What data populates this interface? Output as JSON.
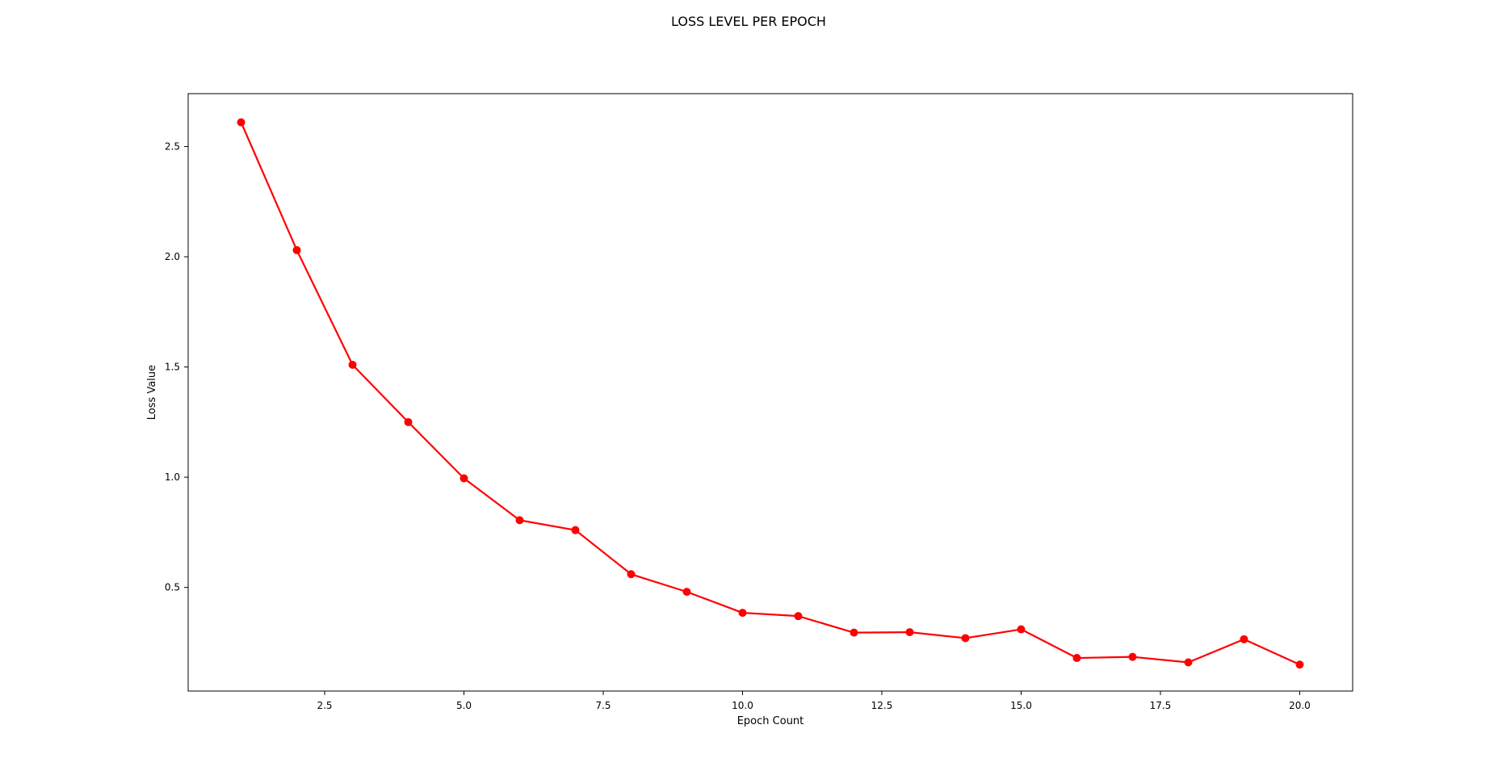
{
  "chart_data": {
    "type": "line",
    "title": "LOSS LEVEL PER EPOCH",
    "xlabel": "Epoch Count",
    "ylabel": "Loss Value",
    "xlim": [
      0.05,
      20.95
    ],
    "ylim": [
      0.03,
      2.74
    ],
    "x_ticks": [
      2.5,
      5.0,
      7.5,
      10.0,
      12.5,
      15.0,
      17.5,
      20.0
    ],
    "x_tick_labels": [
      "2.5",
      "5.0",
      "7.5",
      "10.0",
      "12.5",
      "15.0",
      "17.5",
      "20.0"
    ],
    "y_ticks": [
      0.5,
      1.0,
      1.5,
      2.0,
      2.5
    ],
    "y_tick_labels": [
      "0.5",
      "1.0",
      "1.5",
      "2.0",
      "2.5"
    ],
    "grid": false,
    "series": [
      {
        "color": "#ff0000",
        "x": [
          1,
          2,
          3,
          4,
          5,
          6,
          7,
          8,
          9,
          10,
          11,
          12,
          13,
          14,
          15,
          16,
          17,
          18,
          19,
          20
        ],
        "values": [
          2.61,
          2.03,
          1.51,
          1.25,
          0.995,
          0.805,
          0.76,
          0.56,
          0.48,
          0.385,
          0.37,
          0.295,
          0.297,
          0.27,
          0.31,
          0.18,
          0.185,
          0.16,
          0.265,
          0.15
        ]
      }
    ]
  }
}
